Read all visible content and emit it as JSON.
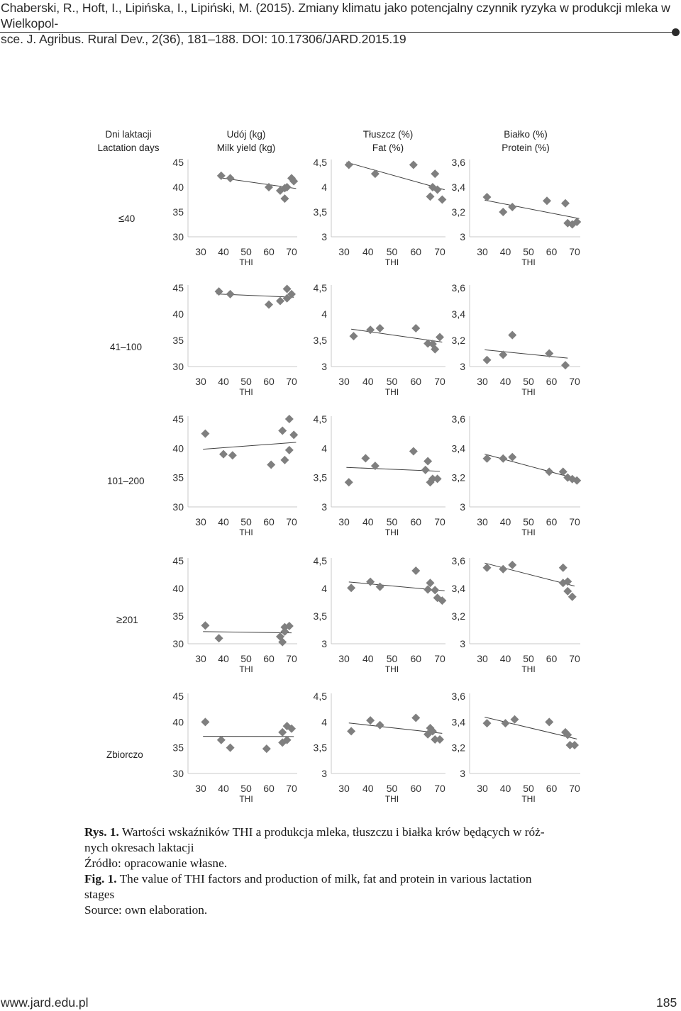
{
  "header": {
    "citation_line1": "Chaberski, R., Hoft, I., Lipińska, I., Lipiński, M. (2015). Zmiany klimatu jako potencjalny czynnik ryzyka w produkcji mleka w Wielkopol-",
    "citation_line2": "sce. J. Agribus. Rural Dev., 2(36), 181–188. DOI: 10.17306/JARD.2015.19"
  },
  "column_headers": [
    {
      "pl": "Dni laktacji",
      "en": "Lactation days"
    },
    {
      "pl": "Udój (kg)",
      "en": "Milk yield (kg)"
    },
    {
      "pl": "Tłuszcz (%)",
      "en": "Fat (%)"
    },
    {
      "pl": "Białko (%)",
      "en": "Protein (%)"
    }
  ],
  "row_labels": [
    {
      "sym": "≤",
      "text": "40"
    },
    {
      "sym": "",
      "text": "41–100"
    },
    {
      "sym": "",
      "text": "101–200"
    },
    {
      "sym": "≥",
      "text": "201"
    },
    {
      "sym": "",
      "text": "Zbiorczo"
    }
  ],
  "colors": {
    "marker": "#7f7f7f",
    "trend": "#404040",
    "axis": "#c8c8c8",
    "tick_text": "#333333"
  },
  "chart_data": [
    {
      "type": "scatter",
      "row": "≤40",
      "col": "Udój (kg)",
      "xlabel": "THI",
      "ylabel": "",
      "xticks": [
        "30",
        "40",
        "50",
        "60",
        "70"
      ],
      "yticks": [
        "30",
        "35",
        "40",
        "45"
      ],
      "xlim": [
        30,
        70
      ],
      "ylim": [
        30,
        45
      ],
      "trendline": true,
      "points": [
        [
          39,
          42.3
        ],
        [
          43,
          41.8
        ],
        [
          60,
          40
        ],
        [
          65,
          39.3
        ],
        [
          67,
          39.8
        ],
        [
          68,
          40
        ],
        [
          67,
          37.7
        ],
        [
          70,
          41.8
        ],
        [
          71,
          41.2
        ]
      ]
    },
    {
      "type": "scatter",
      "row": "≤40",
      "col": "Tłuszcz (%)",
      "xlabel": "THI",
      "ylabel": "",
      "xticks": [
        "30",
        "40",
        "50",
        "60",
        "70"
      ],
      "yticks": [
        "3",
        "3,5",
        "4",
        "4,5"
      ],
      "xlim": [
        30,
        70
      ],
      "ylim": [
        3,
        4.5
      ],
      "trendline": true,
      "points": [
        [
          32,
          4.45
        ],
        [
          43,
          4.27
        ],
        [
          59,
          4.45
        ],
        [
          66,
          3.81
        ],
        [
          67,
          4.0
        ],
        [
          68,
          4.27
        ],
        [
          69,
          3.95
        ],
        [
          71,
          3.75
        ]
      ]
    },
    {
      "type": "scatter",
      "row": "≤40",
      "col": "Białko (%)",
      "xlabel": "THI",
      "ylabel": "",
      "xticks": [
        "30",
        "40",
        "50",
        "60",
        "70"
      ],
      "yticks": [
        "3",
        "3,2",
        "3,4",
        "3,6"
      ],
      "xlim": [
        30,
        70
      ],
      "ylim": [
        3,
        3.6
      ],
      "trendline": true,
      "points": [
        [
          32,
          3.32
        ],
        [
          39,
          3.2
        ],
        [
          43,
          3.24
        ],
        [
          58,
          3.29
        ],
        [
          66,
          3.27
        ],
        [
          67,
          3.11
        ],
        [
          69,
          3.1
        ],
        [
          71,
          3.12
        ]
      ]
    },
    {
      "type": "scatter",
      "row": "41–100",
      "col": "Udój (kg)",
      "xlabel": "THI",
      "ylabel": "",
      "xticks": [
        "30",
        "40",
        "50",
        "60",
        "70"
      ],
      "yticks": [
        "30",
        "35",
        "40",
        "45"
      ],
      "xlim": [
        30,
        70
      ],
      "ylim": [
        30,
        45
      ],
      "trendline": true,
      "points": [
        [
          38,
          44.3
        ],
        [
          43,
          43.8
        ],
        [
          60,
          41.8
        ],
        [
          65,
          42.5
        ],
        [
          68,
          43
        ],
        [
          68,
          44.8
        ],
        [
          70,
          43.8
        ]
      ]
    },
    {
      "type": "scatter",
      "row": "41–100",
      "col": "Tłuszcz (%)",
      "xlabel": "THI",
      "ylabel": "",
      "xticks": [
        "30",
        "40",
        "50",
        "60",
        "70"
      ],
      "yticks": [
        "3",
        "3,5",
        "4",
        "4,5"
      ],
      "xlim": [
        30,
        70
      ],
      "ylim": [
        3,
        4.5
      ],
      "trendline": true,
      "points": [
        [
          34,
          3.58
        ],
        [
          41,
          3.7
        ],
        [
          45,
          3.73
        ],
        [
          60,
          3.73
        ],
        [
          65,
          3.44
        ],
        [
          67,
          3.43
        ],
        [
          68,
          3.33
        ],
        [
          70,
          3.56
        ]
      ]
    },
    {
      "type": "scatter",
      "row": "41–100",
      "col": "Białko (%)",
      "xlabel": "THI",
      "ylabel": "",
      "xticks": [
        "30",
        "40",
        "50",
        "60",
        "70"
      ],
      "yticks": [
        "3",
        "3,2",
        "3,4",
        "3,6"
      ],
      "xlim": [
        30,
        70
      ],
      "ylim": [
        3,
        3.6
      ],
      "trendline": true,
      "points": [
        [
          32,
          3.05
        ],
        [
          39,
          3.09
        ],
        [
          43,
          3.24
        ],
        [
          59,
          3.1
        ],
        [
          66,
          3.01
        ]
      ]
    },
    {
      "type": "scatter",
      "row": "101–200",
      "col": "Udój (kg)",
      "xlabel": "THI",
      "ylabel": "",
      "xticks": [
        "30",
        "40",
        "50",
        "60",
        "70"
      ],
      "yticks": [
        "30",
        "35",
        "40",
        "45"
      ],
      "xlim": [
        30,
        70
      ],
      "ylim": [
        30,
        45
      ],
      "trendline": true,
      "points": [
        [
          32,
          42.5
        ],
        [
          40,
          39
        ],
        [
          44,
          38.8
        ],
        [
          61,
          37.2
        ],
        [
          66,
          43
        ],
        [
          67,
          38
        ],
        [
          69,
          45
        ],
        [
          69,
          39.7
        ],
        [
          71,
          42.3
        ]
      ]
    },
    {
      "type": "scatter",
      "row": "101–200",
      "col": "Tłuszcz (%)",
      "xlabel": "THI",
      "ylabel": "",
      "xticks": [
        "30",
        "40",
        "50",
        "60",
        "70"
      ],
      "yticks": [
        "3",
        "3,5",
        "4",
        "4,5"
      ],
      "xlim": [
        30,
        70
      ],
      "ylim": [
        3,
        4.5
      ],
      "trendline": true,
      "points": [
        [
          32,
          3.42
        ],
        [
          39,
          3.83
        ],
        [
          43,
          3.7
        ],
        [
          59,
          3.95
        ],
        [
          64,
          3.63
        ],
        [
          65,
          3.78
        ],
        [
          66,
          3.42
        ],
        [
          67,
          3.48
        ],
        [
          69,
          3.48
        ]
      ]
    },
    {
      "type": "scatter",
      "row": "101–200",
      "col": "Białko (%)",
      "xlabel": "THI",
      "ylabel": "",
      "xticks": [
        "30",
        "40",
        "50",
        "60",
        "70"
      ],
      "yticks": [
        "3",
        "3,2",
        "3,4",
        "3,6"
      ],
      "xlim": [
        30,
        70
      ],
      "ylim": [
        3,
        3.6
      ],
      "trendline": true,
      "points": [
        [
          32,
          3.33
        ],
        [
          39,
          3.33
        ],
        [
          43,
          3.34
        ],
        [
          59,
          3.24
        ],
        [
          65,
          3.24
        ],
        [
          67,
          3.2
        ],
        [
          69,
          3.19
        ],
        [
          71,
          3.18
        ]
      ]
    },
    {
      "type": "scatter",
      "row": "≥201",
      "col": "Udój (kg)",
      "xlabel": "THI",
      "ylabel": "",
      "xticks": [
        "30",
        "40",
        "50",
        "60",
        "70"
      ],
      "yticks": [
        "30",
        "35",
        "40",
        "45"
      ],
      "xlim": [
        30,
        70
      ],
      "ylim": [
        30,
        45
      ],
      "trendline": true,
      "points": [
        [
          32,
          33.3
        ],
        [
          38,
          31
        ],
        [
          65,
          31.3
        ],
        [
          66,
          30.3
        ],
        [
          67,
          33
        ],
        [
          67,
          32.2
        ],
        [
          69,
          33.2
        ]
      ]
    },
    {
      "type": "scatter",
      "row": "≥201",
      "col": "Tłuszcz (%)",
      "xlabel": "THI",
      "ylabel": "",
      "xticks": [
        "30",
        "40",
        "50",
        "60",
        "70"
      ],
      "yticks": [
        "3",
        "3,5",
        "4",
        "4,5"
      ],
      "xlim": [
        30,
        70
      ],
      "ylim": [
        3,
        4.5
      ],
      "trendline": true,
      "points": [
        [
          33,
          4.01
        ],
        [
          41,
          4.12
        ],
        [
          45,
          4.03
        ],
        [
          60,
          4.32
        ],
        [
          65,
          3.98
        ],
        [
          66,
          4.1
        ],
        [
          68,
          3.97
        ],
        [
          69,
          3.83
        ],
        [
          71,
          3.78
        ]
      ]
    },
    {
      "type": "scatter",
      "row": "≥201",
      "col": "Białko (%)",
      "xlabel": "THI",
      "ylabel": "",
      "xticks": [
        "30",
        "40",
        "50",
        "60",
        "70"
      ],
      "yticks": [
        "3",
        "3,2",
        "3,4",
        "3,6"
      ],
      "xlim": [
        30,
        70
      ],
      "ylim": [
        3,
        3.6
      ],
      "trendline": true,
      "points": [
        [
          32,
          3.55
        ],
        [
          39,
          3.54
        ],
        [
          43,
          3.57
        ],
        [
          65,
          3.55
        ],
        [
          65,
          3.44
        ],
        [
          67,
          3.45
        ],
        [
          67,
          3.38
        ],
        [
          69,
          3.34
        ]
      ]
    },
    {
      "type": "scatter",
      "row": "Zbiorczo",
      "col": "Udój (kg)",
      "xlabel": "THI",
      "ylabel": "",
      "xticks": [
        "30",
        "40",
        "50",
        "60",
        "70"
      ],
      "yticks": [
        "30",
        "35",
        "40",
        "45"
      ],
      "xlim": [
        30,
        70
      ],
      "ylim": [
        30,
        45
      ],
      "trendline": true,
      "points": [
        [
          32,
          40
        ],
        [
          39,
          36.5
        ],
        [
          43,
          35
        ],
        [
          59,
          34.8
        ],
        [
          66,
          38
        ],
        [
          66,
          36
        ],
        [
          68,
          36.5
        ],
        [
          68,
          39.2
        ],
        [
          70,
          38.7
        ]
      ]
    },
    {
      "type": "scatter",
      "row": "Zbiorczo",
      "col": "Tłuszcz (%)",
      "xlabel": "THI",
      "ylabel": "",
      "xticks": [
        "30",
        "40",
        "50",
        "60",
        "70"
      ],
      "yticks": [
        "3",
        "3,5",
        "4",
        "4,5"
      ],
      "xlim": [
        30,
        70
      ],
      "ylim": [
        3,
        4.5
      ],
      "trendline": true,
      "points": [
        [
          33,
          3.82
        ],
        [
          41,
          4.03
        ],
        [
          45,
          3.94
        ],
        [
          60,
          4.08
        ],
        [
          65,
          3.76
        ],
        [
          66,
          3.88
        ],
        [
          67,
          3.82
        ],
        [
          68,
          3.66
        ],
        [
          70,
          3.66
        ]
      ]
    },
    {
      "type": "scatter",
      "row": "Zbiorczo",
      "col": "Białko (%)",
      "xlabel": "THI",
      "ylabel": "",
      "xticks": [
        "30",
        "40",
        "50",
        "60",
        "70"
      ],
      "yticks": [
        "3",
        "3,2",
        "3,4",
        "3,6"
      ],
      "xlim": [
        30,
        70
      ],
      "ylim": [
        3,
        3.6
      ],
      "trendline": true,
      "points": [
        [
          32,
          3.39
        ],
        [
          40,
          3.39
        ],
        [
          44,
          3.42
        ],
        [
          59,
          3.4
        ],
        [
          66,
          3.32
        ],
        [
          67,
          3.3
        ],
        [
          68,
          3.22
        ],
        [
          70,
          3.22
        ]
      ]
    }
  ],
  "caption": {
    "rys_label": "Rys. 1.",
    "rys_text": "Wartości wskaźników THI a produkcja mleka, tłuszczu i białka krów będących w róż-",
    "rys_text2": "nych okresach laktacji",
    "zrodlo": "Źródło: opracowanie własne.",
    "fig_label": "Fig. 1.",
    "fig_text": "The value of THI factors and production of milk, fat and protein in various lactation",
    "fig_text2": "stages",
    "source": "Source: own elaboration."
  },
  "footer": {
    "site": "www.jard.edu.pl",
    "page": "185"
  }
}
